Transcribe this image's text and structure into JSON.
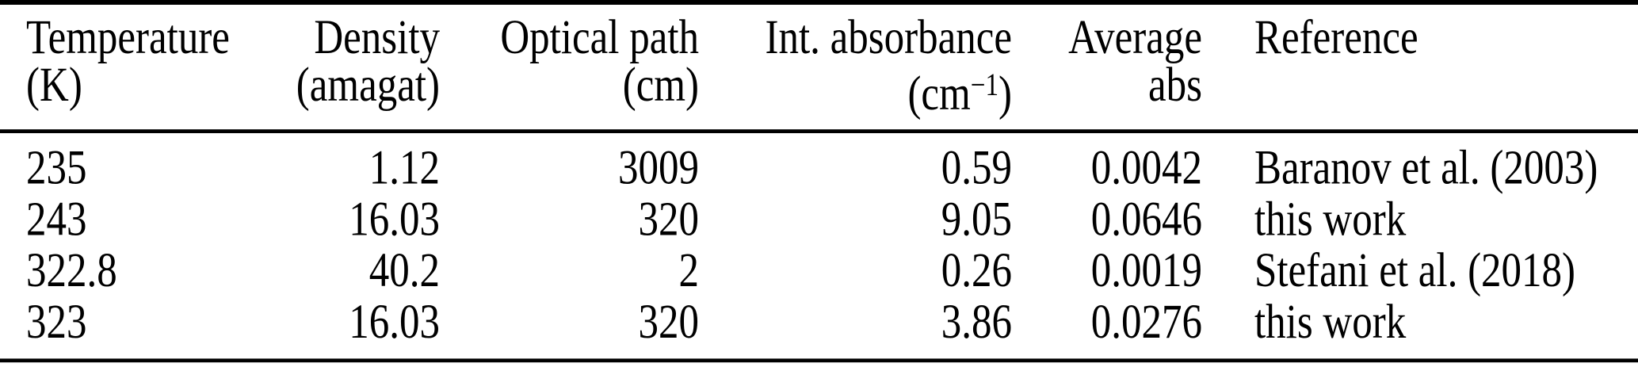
{
  "colors": {
    "text": "#000000",
    "background": "#ffffff",
    "rule": "#000000"
  },
  "table": {
    "columns": [
      {
        "label": "Temperature",
        "unit": "(K)",
        "align": "left"
      },
      {
        "label": "Density",
        "unit": "(amagat)",
        "align": "right"
      },
      {
        "label": "Optical path",
        "unit": "(cm)",
        "align": "right"
      },
      {
        "label": "Int. absorbance",
        "unit_base": "(cm",
        "unit_sup": "−1",
        "unit_close": ")",
        "align": "right"
      },
      {
        "label": "Average",
        "unit": "abs",
        "align": "right"
      },
      {
        "label": "Reference",
        "unit": "",
        "align": "left"
      }
    ],
    "rows": [
      [
        "235",
        "1.12",
        "3009",
        "0.59",
        "0.0042",
        "Baranov et al. (2003)"
      ],
      [
        "243",
        "16.03",
        "320",
        "9.05",
        "0.0646",
        "this work"
      ],
      [
        "322.8",
        "40.2",
        "2",
        "0.26",
        "0.0019",
        "Stefani et al. (2018)"
      ],
      [
        "323",
        "16.03",
        "320",
        "3.86",
        "0.0276",
        "this work"
      ]
    ]
  }
}
